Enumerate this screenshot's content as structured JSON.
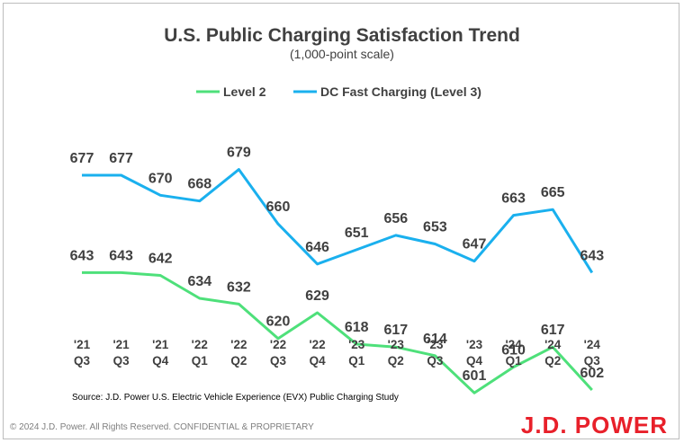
{
  "chart_data": {
    "type": "line",
    "title": "U.S. Public Charging Satisfaction Trend",
    "subtitle": "(1,000-point scale)",
    "categories": [
      [
        "'21",
        "Q3"
      ],
      [
        "'21",
        "Q3"
      ],
      [
        "'21",
        "Q4"
      ],
      [
        "'22",
        "Q1"
      ],
      [
        "'22",
        "Q2"
      ],
      [
        "'22",
        "Q3"
      ],
      [
        "'22",
        "Q4"
      ],
      [
        "'23",
        "Q1"
      ],
      [
        "'23",
        "Q2"
      ],
      [
        "'23",
        "Q3"
      ],
      [
        "'23",
        "Q4"
      ],
      [
        "'24",
        "Q1"
      ],
      [
        "'24",
        "Q2"
      ],
      [
        "'24",
        "Q3"
      ]
    ],
    "series": [
      {
        "name": "Level 2",
        "color": "#4ee07a",
        "values": [
          643,
          643,
          642,
          634,
          632,
          620,
          629,
          618,
          617,
          614,
          601,
          610,
          617,
          602
        ]
      },
      {
        "name": "DC Fast Charging (Level 3)",
        "color": "#1ab0ee",
        "values": [
          677,
          677,
          670,
          668,
          679,
          660,
          646,
          651,
          656,
          653,
          647,
          663,
          665,
          643
        ]
      }
    ],
    "legend_position": "top-center",
    "grid": false
  },
  "source_note": "Source: J.D. Power U.S. Electric Vehicle Experience (EVX) Public Charging Study",
  "footer_text": "© 2024 J.D. Power. All Rights Reserved. CONFIDENTIAL & PROPRIETARY",
  "logo_text": "J.D. POWER",
  "logo_color": "#e8202a"
}
